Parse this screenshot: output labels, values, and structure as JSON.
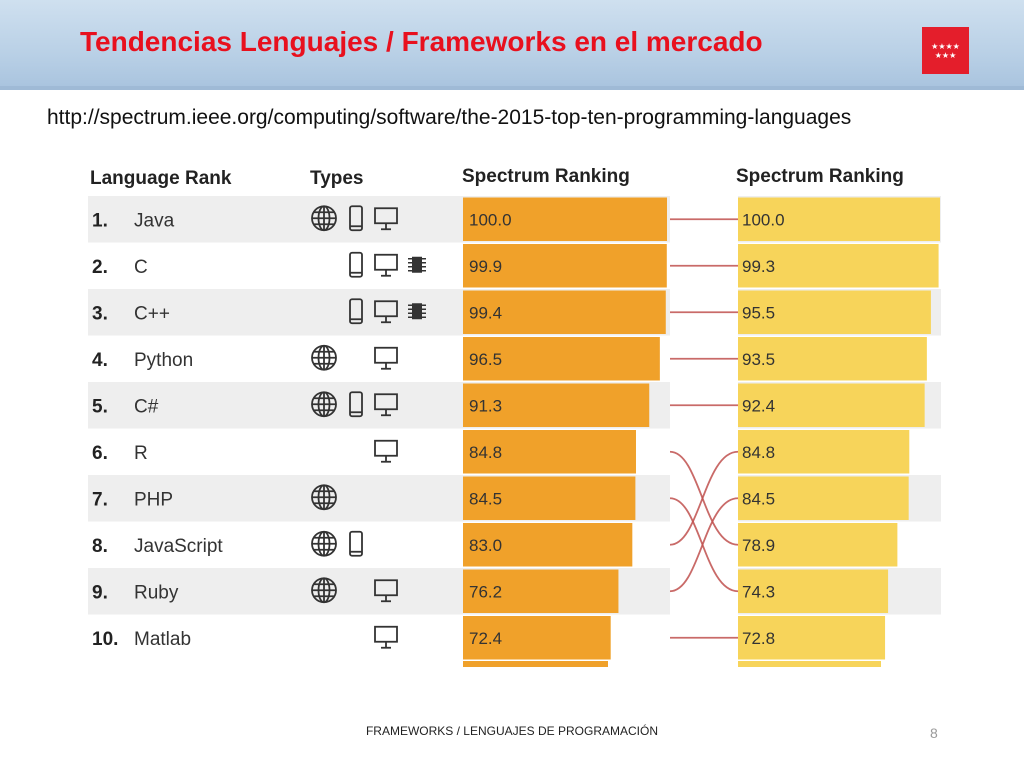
{
  "slide": {
    "title": "Tendencias Lenguajes / Frameworks en el mercado",
    "url": "http://spectrum.ieee.org/computing/software/the-2015-top-ten-programming-languages",
    "footer": "FRAMEWORKS / LENGUAJES DE PROGRAMACIÓN",
    "page_number": "8",
    "logo_stars_top": "★★★★",
    "logo_stars_bottom": "★★★"
  },
  "colors": {
    "title": "#e8101e",
    "bar_left": "#f0a12a",
    "bar_right": "#f7d45a",
    "connector": "#c0504d",
    "row_alt": "#eeeeee",
    "logo_bg": "#e41e2b"
  },
  "chart_data": {
    "type": "table",
    "headers": {
      "rank": "Language Rank",
      "types": "Types",
      "ranking_left": "Spectrum Ranking",
      "ranking_right": "Spectrum Ranking"
    },
    "value_range": [
      0,
      100
    ],
    "rows": [
      {
        "rank": "1.",
        "language": "Java",
        "types": [
          "web-icon",
          "mobile-icon",
          "desktop-icon"
        ],
        "left_value": 100.0,
        "left_label": "100.0"
      },
      {
        "rank": "2.",
        "language": "C",
        "types": [
          "mobile-icon",
          "desktop-icon",
          "embedded-icon"
        ],
        "left_value": 99.9,
        "left_label": "99.9"
      },
      {
        "rank": "3.",
        "language": "C++",
        "types": [
          "mobile-icon",
          "desktop-icon",
          "embedded-icon"
        ],
        "left_value": 99.4,
        "left_label": "99.4"
      },
      {
        "rank": "4.",
        "language": "Python",
        "types": [
          "web-icon",
          "desktop-icon"
        ],
        "left_value": 96.5,
        "left_label": "96.5"
      },
      {
        "rank": "5.",
        "language": "C#",
        "types": [
          "web-icon",
          "mobile-icon",
          "desktop-icon"
        ],
        "left_value": 91.3,
        "left_label": "91.3"
      },
      {
        "rank": "6.",
        "language": "R",
        "types": [
          "desktop-icon"
        ],
        "left_value": 84.8,
        "left_label": "84.8"
      },
      {
        "rank": "7.",
        "language": "PHP",
        "types": [
          "web-icon"
        ],
        "left_value": 84.5,
        "left_label": "84.5"
      },
      {
        "rank": "8.",
        "language": "JavaScript",
        "types": [
          "web-icon",
          "mobile-icon"
        ],
        "left_value": 83.0,
        "left_label": "83.0"
      },
      {
        "rank": "9.",
        "language": "Ruby",
        "types": [
          "web-icon",
          "desktop-icon"
        ],
        "left_value": 76.2,
        "left_label": "76.2"
      },
      {
        "rank": "10.",
        "language": "Matlab",
        "types": [
          "desktop-icon"
        ],
        "left_value": 72.4,
        "left_label": "72.4"
      }
    ],
    "right_values": [
      {
        "value": 100.0,
        "label": "100.0"
      },
      {
        "value": 99.3,
        "label": "99.3"
      },
      {
        "value": 95.5,
        "label": "95.5"
      },
      {
        "value": 93.5,
        "label": "93.5"
      },
      {
        "value": 92.4,
        "label": "92.4"
      },
      {
        "value": 84.8,
        "label": "84.8"
      },
      {
        "value": 84.5,
        "label": "84.5"
      },
      {
        "value": 78.9,
        "label": "78.9"
      },
      {
        "value": 74.3,
        "label": "74.3"
      },
      {
        "value": 72.8,
        "label": "72.8"
      }
    ],
    "connections": [
      {
        "from_row": 1,
        "to_row": 1
      },
      {
        "from_row": 2,
        "to_row": 2
      },
      {
        "from_row": 3,
        "to_row": 3
      },
      {
        "from_row": 4,
        "to_row": 4
      },
      {
        "from_row": 5,
        "to_row": 5
      },
      {
        "from_row": 6,
        "to_row": 8
      },
      {
        "from_row": 7,
        "to_row": 9
      },
      {
        "from_row": 8,
        "to_row": 6
      },
      {
        "from_row": 9,
        "to_row": 7
      },
      {
        "from_row": 10,
        "to_row": 10
      }
    ]
  }
}
